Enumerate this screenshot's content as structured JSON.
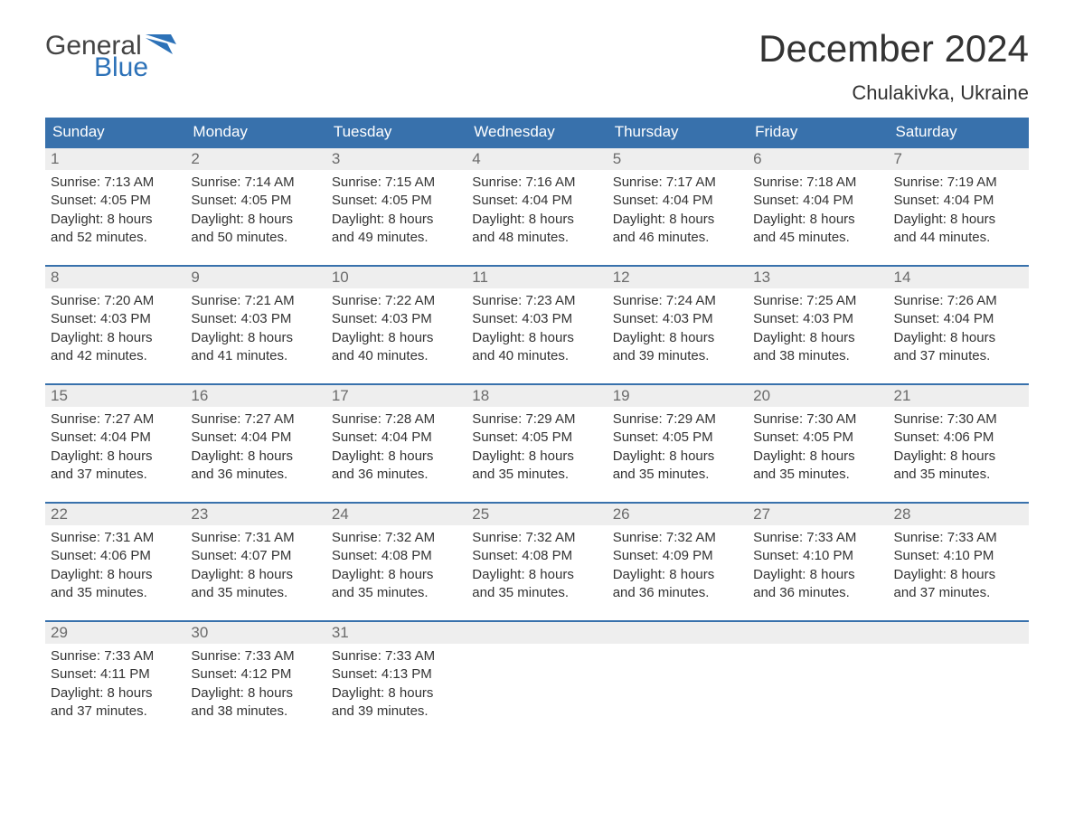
{
  "brand": {
    "general": "General",
    "blue": "Blue",
    "flag_color": "#2d72b8"
  },
  "title": "December 2024",
  "location": "Chulakivka, Ukraine",
  "colors": {
    "header_bg": "#3871ac",
    "header_text": "#ffffff",
    "row_accent": "#3871ac",
    "daynum_bg": "#eeeeee",
    "daynum_text": "#6b6b6b",
    "body_text": "#333333",
    "background": "#ffffff"
  },
  "typography": {
    "title_fontsize": 42,
    "location_fontsize": 22,
    "dayhead_fontsize": 17,
    "cell_fontsize": 15,
    "font_family": "Arial"
  },
  "day_headers": [
    "Sunday",
    "Monday",
    "Tuesday",
    "Wednesday",
    "Thursday",
    "Friday",
    "Saturday"
  ],
  "weeks": [
    [
      {
        "num": "1",
        "sunrise": "Sunrise: 7:13 AM",
        "sunset": "Sunset: 4:05 PM",
        "day1": "Daylight: 8 hours",
        "day2": "and 52 minutes."
      },
      {
        "num": "2",
        "sunrise": "Sunrise: 7:14 AM",
        "sunset": "Sunset: 4:05 PM",
        "day1": "Daylight: 8 hours",
        "day2": "and 50 minutes."
      },
      {
        "num": "3",
        "sunrise": "Sunrise: 7:15 AM",
        "sunset": "Sunset: 4:05 PM",
        "day1": "Daylight: 8 hours",
        "day2": "and 49 minutes."
      },
      {
        "num": "4",
        "sunrise": "Sunrise: 7:16 AM",
        "sunset": "Sunset: 4:04 PM",
        "day1": "Daylight: 8 hours",
        "day2": "and 48 minutes."
      },
      {
        "num": "5",
        "sunrise": "Sunrise: 7:17 AM",
        "sunset": "Sunset: 4:04 PM",
        "day1": "Daylight: 8 hours",
        "day2": "and 46 minutes."
      },
      {
        "num": "6",
        "sunrise": "Sunrise: 7:18 AM",
        "sunset": "Sunset: 4:04 PM",
        "day1": "Daylight: 8 hours",
        "day2": "and 45 minutes."
      },
      {
        "num": "7",
        "sunrise": "Sunrise: 7:19 AM",
        "sunset": "Sunset: 4:04 PM",
        "day1": "Daylight: 8 hours",
        "day2": "and 44 minutes."
      }
    ],
    [
      {
        "num": "8",
        "sunrise": "Sunrise: 7:20 AM",
        "sunset": "Sunset: 4:03 PM",
        "day1": "Daylight: 8 hours",
        "day2": "and 42 minutes."
      },
      {
        "num": "9",
        "sunrise": "Sunrise: 7:21 AM",
        "sunset": "Sunset: 4:03 PM",
        "day1": "Daylight: 8 hours",
        "day2": "and 41 minutes."
      },
      {
        "num": "10",
        "sunrise": "Sunrise: 7:22 AM",
        "sunset": "Sunset: 4:03 PM",
        "day1": "Daylight: 8 hours",
        "day2": "and 40 minutes."
      },
      {
        "num": "11",
        "sunrise": "Sunrise: 7:23 AM",
        "sunset": "Sunset: 4:03 PM",
        "day1": "Daylight: 8 hours",
        "day2": "and 40 minutes."
      },
      {
        "num": "12",
        "sunrise": "Sunrise: 7:24 AM",
        "sunset": "Sunset: 4:03 PM",
        "day1": "Daylight: 8 hours",
        "day2": "and 39 minutes."
      },
      {
        "num": "13",
        "sunrise": "Sunrise: 7:25 AM",
        "sunset": "Sunset: 4:03 PM",
        "day1": "Daylight: 8 hours",
        "day2": "and 38 minutes."
      },
      {
        "num": "14",
        "sunrise": "Sunrise: 7:26 AM",
        "sunset": "Sunset: 4:04 PM",
        "day1": "Daylight: 8 hours",
        "day2": "and 37 minutes."
      }
    ],
    [
      {
        "num": "15",
        "sunrise": "Sunrise: 7:27 AM",
        "sunset": "Sunset: 4:04 PM",
        "day1": "Daylight: 8 hours",
        "day2": "and 37 minutes."
      },
      {
        "num": "16",
        "sunrise": "Sunrise: 7:27 AM",
        "sunset": "Sunset: 4:04 PM",
        "day1": "Daylight: 8 hours",
        "day2": "and 36 minutes."
      },
      {
        "num": "17",
        "sunrise": "Sunrise: 7:28 AM",
        "sunset": "Sunset: 4:04 PM",
        "day1": "Daylight: 8 hours",
        "day2": "and 36 minutes."
      },
      {
        "num": "18",
        "sunrise": "Sunrise: 7:29 AM",
        "sunset": "Sunset: 4:05 PM",
        "day1": "Daylight: 8 hours",
        "day2": "and 35 minutes."
      },
      {
        "num": "19",
        "sunrise": "Sunrise: 7:29 AM",
        "sunset": "Sunset: 4:05 PM",
        "day1": "Daylight: 8 hours",
        "day2": "and 35 minutes."
      },
      {
        "num": "20",
        "sunrise": "Sunrise: 7:30 AM",
        "sunset": "Sunset: 4:05 PM",
        "day1": "Daylight: 8 hours",
        "day2": "and 35 minutes."
      },
      {
        "num": "21",
        "sunrise": "Sunrise: 7:30 AM",
        "sunset": "Sunset: 4:06 PM",
        "day1": "Daylight: 8 hours",
        "day2": "and 35 minutes."
      }
    ],
    [
      {
        "num": "22",
        "sunrise": "Sunrise: 7:31 AM",
        "sunset": "Sunset: 4:06 PM",
        "day1": "Daylight: 8 hours",
        "day2": "and 35 minutes."
      },
      {
        "num": "23",
        "sunrise": "Sunrise: 7:31 AM",
        "sunset": "Sunset: 4:07 PM",
        "day1": "Daylight: 8 hours",
        "day2": "and 35 minutes."
      },
      {
        "num": "24",
        "sunrise": "Sunrise: 7:32 AM",
        "sunset": "Sunset: 4:08 PM",
        "day1": "Daylight: 8 hours",
        "day2": "and 35 minutes."
      },
      {
        "num": "25",
        "sunrise": "Sunrise: 7:32 AM",
        "sunset": "Sunset: 4:08 PM",
        "day1": "Daylight: 8 hours",
        "day2": "and 35 minutes."
      },
      {
        "num": "26",
        "sunrise": "Sunrise: 7:32 AM",
        "sunset": "Sunset: 4:09 PM",
        "day1": "Daylight: 8 hours",
        "day2": "and 36 minutes."
      },
      {
        "num": "27",
        "sunrise": "Sunrise: 7:33 AM",
        "sunset": "Sunset: 4:10 PM",
        "day1": "Daylight: 8 hours",
        "day2": "and 36 minutes."
      },
      {
        "num": "28",
        "sunrise": "Sunrise: 7:33 AM",
        "sunset": "Sunset: 4:10 PM",
        "day1": "Daylight: 8 hours",
        "day2": "and 37 minutes."
      }
    ],
    [
      {
        "num": "29",
        "sunrise": "Sunrise: 7:33 AM",
        "sunset": "Sunset: 4:11 PM",
        "day1": "Daylight: 8 hours",
        "day2": "and 37 minutes."
      },
      {
        "num": "30",
        "sunrise": "Sunrise: 7:33 AM",
        "sunset": "Sunset: 4:12 PM",
        "day1": "Daylight: 8 hours",
        "day2": "and 38 minutes."
      },
      {
        "num": "31",
        "sunrise": "Sunrise: 7:33 AM",
        "sunset": "Sunset: 4:13 PM",
        "day1": "Daylight: 8 hours",
        "day2": "and 39 minutes."
      },
      null,
      null,
      null,
      null
    ]
  ]
}
